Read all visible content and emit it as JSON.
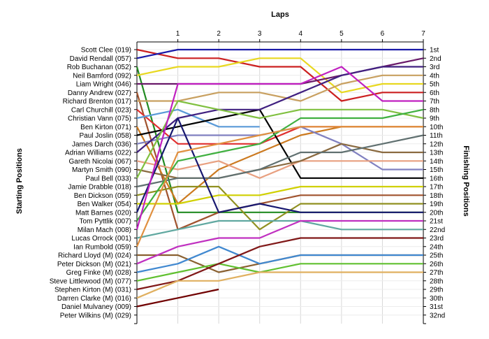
{
  "chart_data": {
    "type": "line",
    "title": "",
    "xlabel": "Laps",
    "ylabel_left": "Starting Positions",
    "ylabel_right": "Finishing Positions",
    "x": [
      0,
      1,
      2,
      3,
      4,
      5,
      6,
      7
    ],
    "x_tick_labels": [
      "1",
      "2",
      "3",
      "4",
      "5",
      "6",
      "7"
    ],
    "ylim": [
      1,
      32
    ],
    "y_inverted": true,
    "grid": true,
    "finishing_position_labels": [
      "1st",
      "2nd",
      "3rd",
      "4th",
      "5th",
      "6th",
      "7th",
      "8th",
      "9th",
      "10th",
      "11th",
      "12th",
      "13th",
      "14th",
      "15th",
      "16th",
      "17th",
      "18th",
      "19th",
      "20th",
      "21st",
      "22nd",
      "23rd",
      "24th",
      "25th",
      "26th",
      "27th",
      "28th",
      "29th",
      "30th",
      "31st",
      "32nd"
    ],
    "series": [
      {
        "name": "Scott Clee (019)",
        "color": "#cc2020",
        "values": [
          1,
          2,
          2,
          3,
          3,
          7,
          6,
          6
        ]
      },
      {
        "name": "David Rendall (057)",
        "color": "#1a1aa8",
        "values": [
          2,
          1,
          1,
          1,
          1,
          1,
          1,
          1
        ]
      },
      {
        "name": "Rob Buchanan (052)",
        "color": "#228b22",
        "values": [
          3,
          20,
          20,
          20,
          20,
          20,
          20,
          20
        ]
      },
      {
        "name": "Neil Bamford (092)",
        "color": "#e8d820",
        "values": [
          4,
          3,
          3,
          2,
          2,
          6,
          5,
          5
        ]
      },
      {
        "name": "Liam Wright (046)",
        "color": "#6a1a6a",
        "values": [
          5,
          5,
          5,
          5,
          5,
          4,
          3,
          2
        ]
      },
      {
        "name": "Danny Andrew (027)",
        "color": "#a0522d",
        "values": [
          6,
          22,
          20,
          19,
          18,
          18,
          18,
          18
        ]
      },
      {
        "name": "Richard Brenton (017)",
        "color": "#c8a060",
        "values": [
          7,
          7,
          6,
          6,
          7,
          5,
          4,
          4
        ]
      },
      {
        "name": "Carl Churchill (023)",
        "color": "#e03030",
        "values": [
          8,
          12,
          12,
          12,
          10,
          10,
          10,
          10
        ]
      },
      {
        "name": "Christian Vann (075)",
        "color": "#5a9ad8",
        "values": [
          9,
          8,
          10,
          10,
          null,
          null,
          null,
          null
        ]
      },
      {
        "name": "Ben Kirton (071)",
        "color": "#cc7a20",
        "values": [
          10,
          19,
          15,
          13,
          11,
          10,
          10,
          10
        ]
      },
      {
        "name": "Paul Joslin (058)",
        "color": "#000000",
        "values": [
          11,
          10,
          9,
          8,
          16,
          16,
          16,
          16
        ]
      },
      {
        "name": "James Darch (036)",
        "color": "#8080c0",
        "values": [
          12,
          11,
          11,
          11,
          10,
          12,
          15,
          15
        ]
      },
      {
        "name": "Adrian Williams (022)",
        "color": "#402080",
        "values": [
          13,
          9,
          8,
          8,
          6,
          4,
          3,
          3
        ]
      },
      {
        "name": "Gareth Nicolai (067)",
        "color": "#e8a080",
        "values": [
          14,
          15,
          14,
          16,
          14,
          14,
          14,
          14
        ]
      },
      {
        "name": "Martyn Smith (090)",
        "color": "#8a6a40",
        "values": [
          15,
          16,
          16,
          15,
          14,
          12,
          13,
          13
        ]
      },
      {
        "name": "Paul Bell (033)",
        "color": "#80c040",
        "values": [
          16,
          7,
          8,
          9,
          8,
          8,
          8,
          9
        ]
      },
      {
        "name": "Jamie Drabble (018)",
        "color": "#607070",
        "values": [
          17,
          16,
          16,
          15,
          13,
          13,
          12,
          11
        ]
      },
      {
        "name": "Ben Dickson (059)",
        "color": "#909020",
        "values": [
          18,
          17,
          17,
          22,
          19,
          19,
          19,
          19
        ]
      },
      {
        "name": "Ben Walker (054)",
        "color": "#d0d000",
        "values": [
          19,
          19,
          18,
          18,
          17,
          17,
          17,
          17
        ]
      },
      {
        "name": "Matt Barnes (020)",
        "color": "#181870",
        "values": [
          20,
          9,
          20,
          19,
          20,
          20,
          20,
          20
        ]
      },
      {
        "name": "Tom Pyttlik (007)",
        "color": "#40b040",
        "values": [
          21,
          14,
          13,
          12,
          9,
          9,
          9,
          8
        ]
      },
      {
        "name": "Milan Mach (008)",
        "color": "#c020c0",
        "values": [
          22,
          5,
          5,
          5,
          5,
          3,
          7,
          7
        ]
      },
      {
        "name": "Lucas Orrock (001)",
        "color": "#60a8a0",
        "values": [
          23,
          22,
          21,
          21,
          21,
          22,
          22,
          22
        ]
      },
      {
        "name": "Ian Rumbold (059)",
        "color": "#e09040",
        "values": [
          24,
          13,
          12,
          11,
          10,
          10,
          10,
          10
        ]
      },
      {
        "name": "Richard Lloyd (M) (024)",
        "color": "#8a6030",
        "values": [
          25,
          25,
          27,
          26,
          25,
          25,
          25,
          25
        ]
      },
      {
        "name": "Peter Dickson (M) (021)",
        "color": "#c030c0",
        "values": [
          26,
          24,
          23,
          23,
          21,
          21,
          21,
          21
        ]
      },
      {
        "name": "Greg Finke (M) (028)",
        "color": "#4088d0",
        "values": [
          27,
          26,
          24,
          26,
          25,
          25,
          25,
          25
        ]
      },
      {
        "name": "Steve Littlewood (M) (077)",
        "color": "#60c030",
        "values": [
          28,
          27,
          26,
          27,
          26,
          26,
          26,
          26
        ]
      },
      {
        "name": "Stephen Kirton (M) (031)",
        "color": "#801818",
        "values": [
          29,
          28,
          26,
          24,
          23,
          23,
          23,
          23
        ]
      },
      {
        "name": "Darren Clarke (M) (016)",
        "color": "#e0b060",
        "values": [
          30,
          28,
          28,
          27,
          27,
          27,
          27,
          27
        ]
      },
      {
        "name": "Daniel Mulvaney (009)",
        "color": "#700000",
        "values": [
          31,
          30,
          29,
          null,
          null,
          null,
          null,
          null
        ]
      },
      {
        "name": "Peter Wilkins (M) (029)",
        "color": "#555555",
        "values": [
          32,
          null,
          null,
          null,
          null,
          null,
          null,
          null
        ]
      }
    ]
  }
}
